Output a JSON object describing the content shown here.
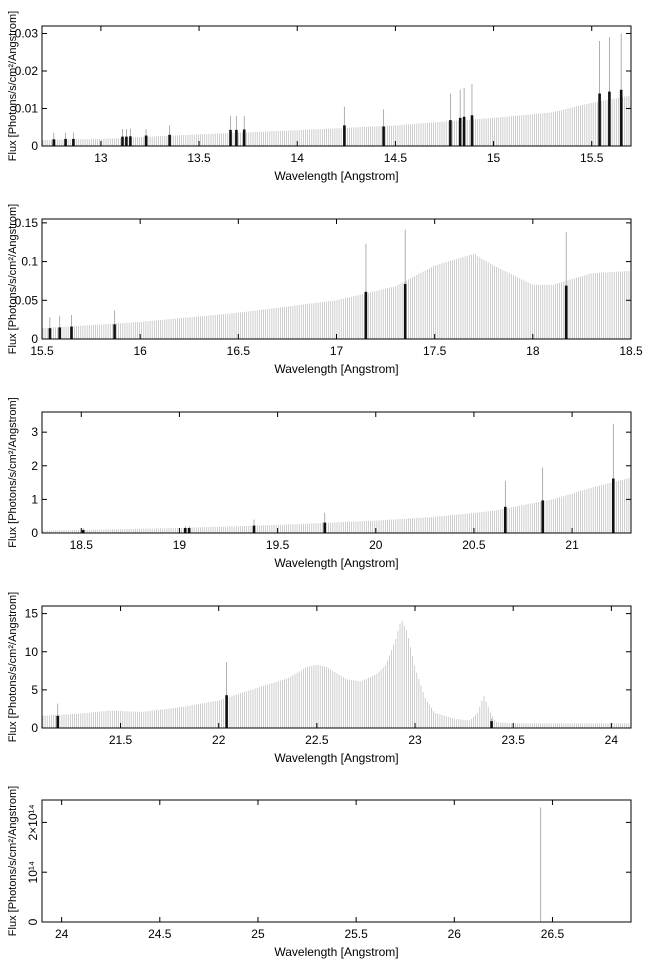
{
  "chart_data": [
    {
      "type": "bar",
      "xlabel": "Wavelength [Angstrom]",
      "ylabel": "Flux [Photons/s/cm²/Angstrom]",
      "xlim": [
        12.7,
        15.7
      ],
      "ylim": [
        0,
        0.032
      ],
      "xticks": [
        "13",
        "13.5",
        "14",
        "14.5",
        "15",
        "15.5"
      ],
      "xtick_values": [
        13,
        13.5,
        14,
        14.5,
        15,
        15.5
      ],
      "yticks": [
        "0",
        "0.01",
        "0.02",
        "0.03"
      ],
      "ytick_values": [
        0,
        0.01,
        0.02,
        0.03
      ],
      "continuum": [
        [
          12.7,
          0.0016
        ],
        [
          13.0,
          0.0019
        ],
        [
          13.5,
          0.0031
        ],
        [
          14.0,
          0.0042
        ],
        [
          14.5,
          0.0055
        ],
        [
          15.0,
          0.0075
        ],
        [
          15.3,
          0.009
        ],
        [
          15.5,
          0.0115
        ],
        [
          15.7,
          0.0135
        ]
      ],
      "lines": [
        {
          "x": 12.76,
          "value": 0.0018,
          "upper": 0.0035
        },
        {
          "x": 12.82,
          "value": 0.0019,
          "upper": 0.0035
        },
        {
          "x": 12.86,
          "value": 0.0019,
          "upper": 0.0036
        },
        {
          "x": 13.11,
          "value": 0.0025,
          "upper": 0.0045
        },
        {
          "x": 13.13,
          "value": 0.0025,
          "upper": 0.0045
        },
        {
          "x": 13.15,
          "value": 0.0026,
          "upper": 0.0046
        },
        {
          "x": 13.23,
          "value": 0.0028,
          "upper": 0.0045
        },
        {
          "x": 13.35,
          "value": 0.003,
          "upper": 0.0055
        },
        {
          "x": 13.66,
          "value": 0.0043,
          "upper": 0.008
        },
        {
          "x": 13.69,
          "value": 0.0043,
          "upper": 0.008
        },
        {
          "x": 13.73,
          "value": 0.0044,
          "upper": 0.008
        },
        {
          "x": 14.24,
          "value": 0.0055,
          "upper": 0.0105
        },
        {
          "x": 14.44,
          "value": 0.0052,
          "upper": 0.0098
        },
        {
          "x": 14.78,
          "value": 0.0069,
          "upper": 0.014
        },
        {
          "x": 14.83,
          "value": 0.0075,
          "upper": 0.015
        },
        {
          "x": 14.85,
          "value": 0.0078,
          "upper": 0.0155
        },
        {
          "x": 14.89,
          "value": 0.0082,
          "upper": 0.0165
        },
        {
          "x": 15.54,
          "value": 0.014,
          "upper": 0.028
        },
        {
          "x": 15.59,
          "value": 0.0145,
          "upper": 0.029
        },
        {
          "x": 15.65,
          "value": 0.015,
          "upper": 0.03
        }
      ]
    },
    {
      "type": "bar",
      "xlabel": "Wavelength [Angstrom]",
      "ylabel": "Flux [Photons/s/cm²/Angstrom]",
      "xlim": [
        15.5,
        18.5
      ],
      "ylim": [
        0,
        0.155
      ],
      "xticks": [
        "15.5",
        "16",
        "16.5",
        "17",
        "17.5",
        "18",
        "18.5"
      ],
      "xtick_values": [
        15.5,
        16,
        16.5,
        17,
        17.5,
        18,
        18.5
      ],
      "yticks": [
        "0",
        "0.05",
        "0.1",
        "0.15"
      ],
      "ytick_values": [
        0,
        0.05,
        0.1,
        0.15
      ],
      "continuum": [
        [
          15.5,
          0.014
        ],
        [
          16.0,
          0.022
        ],
        [
          16.5,
          0.034
        ],
        [
          17.0,
          0.05
        ],
        [
          17.3,
          0.068
        ],
        [
          17.5,
          0.095
        ],
        [
          17.7,
          0.11
        ],
        [
          17.8,
          0.095
        ],
        [
          18.0,
          0.07
        ],
        [
          18.1,
          0.07
        ],
        [
          18.3,
          0.085
        ],
        [
          18.5,
          0.088
        ]
      ],
      "lines": [
        {
          "x": 15.54,
          "value": 0.014,
          "upper": 0.028
        },
        {
          "x": 15.59,
          "value": 0.015,
          "upper": 0.03
        },
        {
          "x": 15.65,
          "value": 0.016,
          "upper": 0.031
        },
        {
          "x": 15.87,
          "value": 0.019,
          "upper": 0.037
        },
        {
          "x": 17.15,
          "value": 0.061,
          "upper": 0.123
        },
        {
          "x": 17.35,
          "value": 0.071,
          "upper": 0.141
        },
        {
          "x": 18.17,
          "value": 0.069,
          "upper": 0.138
        }
      ]
    },
    {
      "type": "bar",
      "xlabel": "Wavelength [Angstrom]",
      "ylabel": "Flux [Photons/s/cm²/Angstrom]",
      "xlim": [
        18.3,
        21.3
      ],
      "ylim": [
        0,
        3.6
      ],
      "xticks": [
        "18.5",
        "19",
        "19.5",
        "20",
        "20.5",
        "21"
      ],
      "xtick_values": [
        18.5,
        19,
        19.5,
        20,
        20.5,
        21
      ],
      "yticks": [
        "0",
        "1",
        "2",
        "3"
      ],
      "ytick_values": [
        0,
        1,
        2,
        3
      ],
      "continuum": [
        [
          18.3,
          0.07
        ],
        [
          18.5,
          0.09
        ],
        [
          19.0,
          0.15
        ],
        [
          19.5,
          0.24
        ],
        [
          20.0,
          0.37
        ],
        [
          20.3,
          0.48
        ],
        [
          20.6,
          0.66
        ],
        [
          20.9,
          1.0
        ],
        [
          21.1,
          1.35
        ],
        [
          21.3,
          1.65
        ]
      ],
      "lines": [
        {
          "x": 18.51,
          "value": 0.09,
          "upper": 0.14
        },
        {
          "x": 19.03,
          "value": 0.15,
          "upper": 0.2
        },
        {
          "x": 19.05,
          "value": 0.15,
          "upper": 0.2
        },
        {
          "x": 19.38,
          "value": 0.22,
          "upper": 0.4
        },
        {
          "x": 19.74,
          "value": 0.31,
          "upper": 0.6
        },
        {
          "x": 20.66,
          "value": 0.78,
          "upper": 1.55
        },
        {
          "x": 20.85,
          "value": 0.97,
          "upper": 1.95
        },
        {
          "x": 21.21,
          "value": 1.62,
          "upper": 3.25
        }
      ]
    },
    {
      "type": "bar",
      "xlabel": "Wavelength [Angstrom]",
      "ylabel": "Flux [Photons/s/cm²/Angstrom]",
      "xlim": [
        21.1,
        24.1
      ],
      "ylim": [
        0,
        16
      ],
      "xticks": [
        "21.5",
        "22",
        "22.5",
        "23",
        "23.5",
        "24"
      ],
      "xtick_values": [
        21.5,
        22,
        22.5,
        23,
        23.5,
        24
      ],
      "yticks": [
        "0",
        "5",
        "10",
        "15"
      ],
      "ytick_values": [
        0,
        5,
        10,
        15
      ],
      "continuum": [
        [
          21.1,
          1.6
        ],
        [
          21.3,
          1.9
        ],
        [
          21.45,
          2.3
        ],
        [
          21.6,
          2.1
        ],
        [
          21.8,
          2.7
        ],
        [
          22.0,
          3.6
        ],
        [
          22.2,
          5.3
        ],
        [
          22.35,
          6.5
        ],
        [
          22.45,
          8.0
        ],
        [
          22.5,
          8.3
        ],
        [
          22.55,
          8.0
        ],
        [
          22.65,
          6.4
        ],
        [
          22.72,
          6.1
        ],
        [
          22.8,
          7.0
        ],
        [
          22.85,
          8.2
        ],
        [
          22.9,
          11.5
        ],
        [
          22.93,
          14.3
        ],
        [
          22.96,
          12.5
        ],
        [
          23.0,
          8.0
        ],
        [
          23.05,
          4.0
        ],
        [
          23.1,
          2.0
        ],
        [
          23.2,
          1.2
        ],
        [
          23.28,
          1.0
        ],
        [
          23.32,
          2.0
        ],
        [
          23.35,
          4.3
        ],
        [
          23.38,
          2.2
        ],
        [
          23.41,
          0.8
        ],
        [
          23.5,
          0.6
        ],
        [
          24.1,
          0.6
        ]
      ],
      "lines": [
        {
          "x": 21.18,
          "value": 1.6,
          "upper": 3.2
        },
        {
          "x": 22.04,
          "value": 4.3,
          "upper": 8.6
        },
        {
          "x": 23.39,
          "value": 0.9,
          "upper": 1.2
        }
      ]
    },
    {
      "type": "bar",
      "xlabel": "Wavelength [Angstrom]",
      "ylabel": "Flux [Photons/s/cm²/Angstrom]",
      "xlim": [
        23.9,
        26.9
      ],
      "ylim": [
        0,
        245000000000000.0
      ],
      "xticks": [
        "24",
        "24.5",
        "25",
        "25.5",
        "26",
        "26.5"
      ],
      "xtick_values": [
        24,
        24.5,
        25,
        25.5,
        26,
        26.5
      ],
      "yticks": [
        "0",
        "10¹⁴",
        "2×10¹⁴"
      ],
      "ytick_values": [
        0,
        100000000000000.0,
        200000000000000.0
      ],
      "continuum": [],
      "lines": [
        {
          "x": 26.44,
          "value": 0,
          "upper": 230000000000000.0
        }
      ]
    }
  ]
}
